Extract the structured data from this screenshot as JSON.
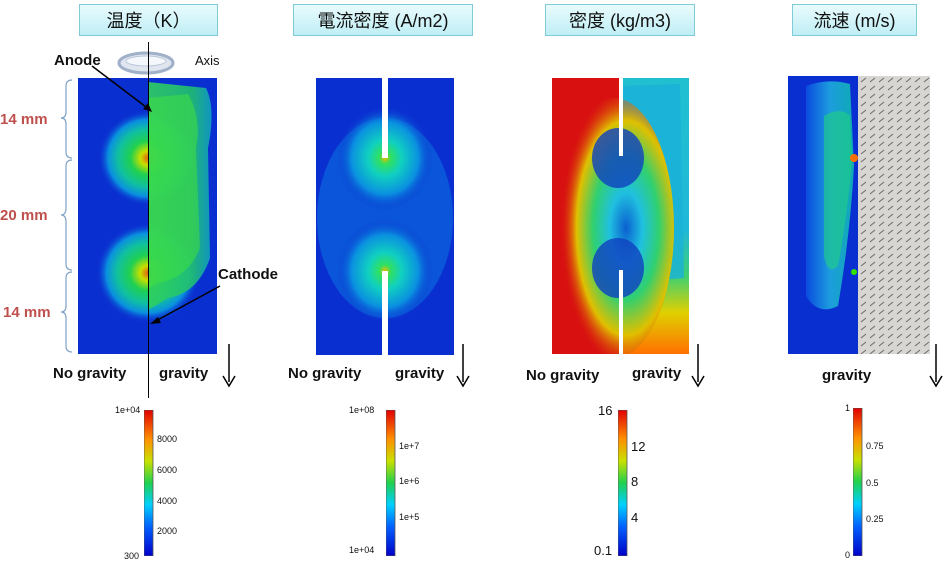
{
  "titles": {
    "temperature": "温度（K）",
    "current_density": "電流密度 (A/m2)",
    "density": "密度 (kg/m3)",
    "flow_velocity": "流速 (m/s)"
  },
  "labels": {
    "anode": "Anode",
    "axis": "Axis",
    "cathode": "Cathode",
    "no_gravity": "No gravity",
    "gravity": "gravity"
  },
  "dimensions": {
    "top": "14 mm",
    "middle": "20 mm",
    "bottom": "14 mm"
  },
  "colorbars": {
    "temperature": {
      "max": "1e+04",
      "ticks": [
        "8000",
        "6000",
        "4000",
        "2000"
      ],
      "min": "300"
    },
    "current_density": {
      "max": "1e+08",
      "ticks": [
        "1e+7",
        "1e+6",
        "1e+5"
      ],
      "min": "1e+04"
    },
    "density": {
      "max": "16",
      "ticks": [
        "12",
        "8",
        "4"
      ],
      "min": "0.1"
    },
    "flow_velocity": {
      "max": "1",
      "ticks": [
        "0.75",
        "0.5",
        "0.25"
      ],
      "min": "0"
    }
  },
  "colors": {
    "dimension_text": "#c0504d",
    "title_bg": "#bfeef5",
    "field_low": "#0a2fd0",
    "field_high": "#e01a0a"
  }
}
